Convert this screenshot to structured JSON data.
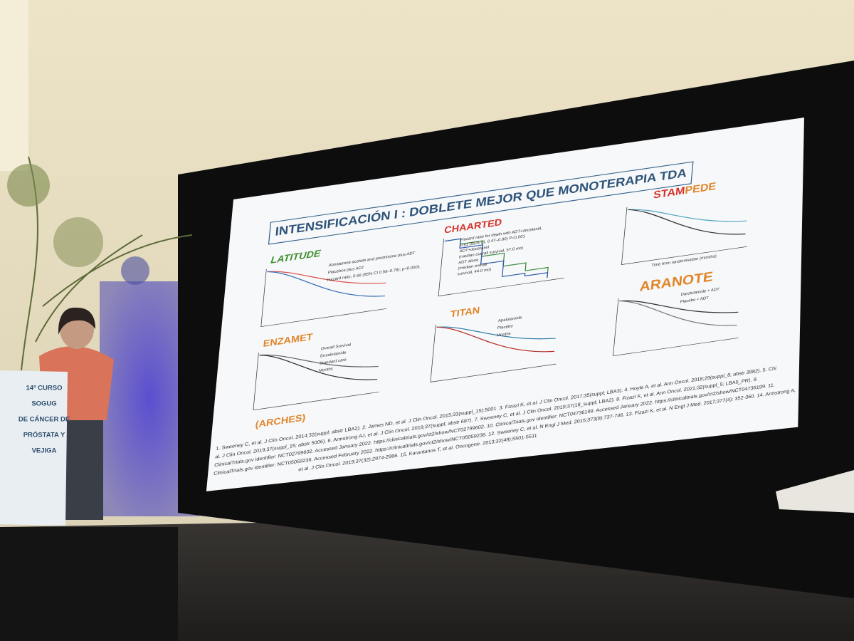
{
  "slide": {
    "title": "INTENSIFICACIÓN I : DOBLETE MEJOR QUE MONOTERAPIA TDA",
    "panels": [
      {
        "name": "LATITUDE",
        "notes": [
          "Abiraterone acetate and prednisone plus ADT",
          "Placebos plus ADT",
          "Hazard ratio, 0.66 (95% CI 0.56–0.78); p<0.0001"
        ]
      },
      {
        "name": "CHAARTED",
        "notes": [
          "Hazard ratio for death with ADT+docetaxel,",
          "0.61 (95% CI, 0.47–0.80) P<0.001",
          "ADT+docetaxel",
          "(median overall survival, 57.6 mo)",
          "ADT alone",
          "(median overall",
          "survival, 44.0 mo)"
        ]
      },
      {
        "name_parts": [
          "STAM",
          "PEDE"
        ],
        "notes": [
          "Time from randomisation (months)"
        ]
      },
      {
        "name": "ENZAMET",
        "notes": [
          "Overall Survival",
          "Enzalutamide",
          "Standard care",
          "Months"
        ]
      },
      {
        "name": "TITAN",
        "notes": [
          "Apalutamide",
          "Placebo",
          "Months"
        ]
      },
      {
        "name": "ARANOTE",
        "notes": [
          "Darolutamide + ADT",
          "Placebo + ADT"
        ]
      }
    ],
    "extra": "(ARCHES)",
    "references": [
      "1. Sweeney C, et al. J Clin Oncol. 2014;32(suppl; abstr LBA2). 2. James ND, et al. J Clin Oncol. 2015;33(suppl_15):5001. 3. Fizazi K, et al. J Clin Oncol. 2017;35(suppl; LBA3). 4. Hoyle A, et al. Ann Oncol. 2018;29(suppl_8; abstr 3982). 5. Chi",
      "al. J Clin Oncol. 2019;37(suppl_15; abstr 5006). 6. Armstrong AJ, et al. J Clin Oncol. 2019;37(suppl; abstr 687). 7. Sweeney C, et al. J Clin Oncol. 2019;37(18_suppl; LBA2). 8. Fizazi K, et al. Ann Oncol. 2021;32(suppl_5; LBA5_PR). 9.",
      "ClinicalTrials.gov identifier: NCT02799602. Accessed January 2022. https://clinicaltrials.gov/ct2/show/NCT02799602. 10. ClinicalTrials.gov identifier: NCT04736199. Accessed January 2022. https://clinicaltrials.gov/ct2/show/NCT04736199. 11.",
      "ClinicalTrials.gov identifier: NCT05059236. Accessed February 2022. https://clinicaltrials.gov/ct2/show/NCT05059236. 12. Sweeney C, et al. N Engl J Med. 2015;373(8):737-746. 13. Fizazi K, et al. N Engl J Med. 2017;377(4): 352-360. 14. Armstrong A,",
      "et al. J Clin Oncol. 2019;37(32):2974-2986. 15. Karantanos T, et al. Oncogene. 2013;32(49):5501-5511"
    ]
  },
  "podium": {
    "lines": [
      "14º CURSO",
      "SOGUG",
      "DE CÁNCER DE",
      "PRÓSTATA Y",
      "VEJIGA"
    ]
  }
}
